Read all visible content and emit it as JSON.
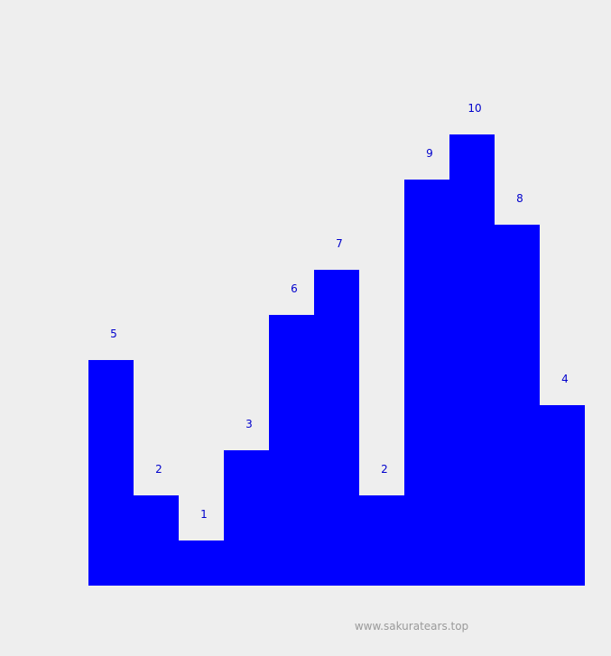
{
  "chart_data": {
    "type": "bar",
    "categories": [
      "",
      "",
      "",
      "",
      "",
      "",
      "",
      "",
      "",
      "",
      ""
    ],
    "values": [
      5,
      2,
      1,
      3,
      6,
      7,
      2,
      9,
      10,
      8,
      4
    ],
    "ylim": [
      0,
      10
    ],
    "grid": false,
    "legend": "none",
    "bar_color": "#0000ff",
    "label_color": "#0000cc"
  },
  "watermark": {
    "text": "www.sakuratears.top",
    "color": "#9a9a9a"
  }
}
